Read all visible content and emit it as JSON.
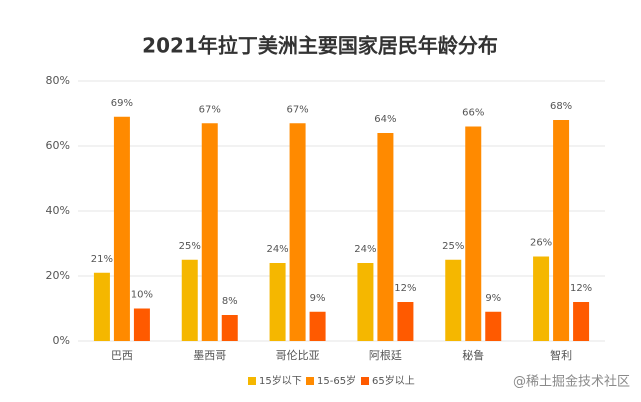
{
  "chart_data": {
    "type": "bar",
    "title": "2021年拉丁美洲主要国家居民年龄分布",
    "categories": [
      "巴西",
      "墨西哥",
      "哥伦比亚",
      "阿根廷",
      "秘鲁",
      "智利"
    ],
    "series": [
      {
        "name": "15岁以下",
        "color": "#f5b700",
        "values": [
          21,
          25,
          24,
          24,
          25,
          26
        ],
        "value_labels": [
          "21%",
          "25%",
          "24%",
          "24%",
          "25%",
          "26%"
        ]
      },
      {
        "name": "15-65岁",
        "color": "#ff8a00",
        "values": [
          69,
          67,
          67,
          64,
          66,
          68
        ],
        "value_labels": [
          "69%",
          "67%",
          "67%",
          "64%",
          "66%",
          "68%"
        ]
      },
      {
        "name": "65岁以上",
        "color": "#ff5a00",
        "values": [
          10,
          8,
          9,
          12,
          9,
          12
        ],
        "value_labels": [
          "10%",
          "8%",
          "9%",
          "12%",
          "9%",
          "12%"
        ]
      }
    ],
    "ylim": [
      0,
      80
    ],
    "yticks": [
      {
        "value": 0,
        "label": "0%"
      },
      {
        "value": 20,
        "label": "20%"
      },
      {
        "value": 40,
        "label": "40%"
      },
      {
        "value": 60,
        "label": "60%"
      },
      {
        "value": 80,
        "label": "80%"
      }
    ],
    "grid": true,
    "legend": "bottom"
  },
  "watermark": "@稀土掘金技术社区"
}
